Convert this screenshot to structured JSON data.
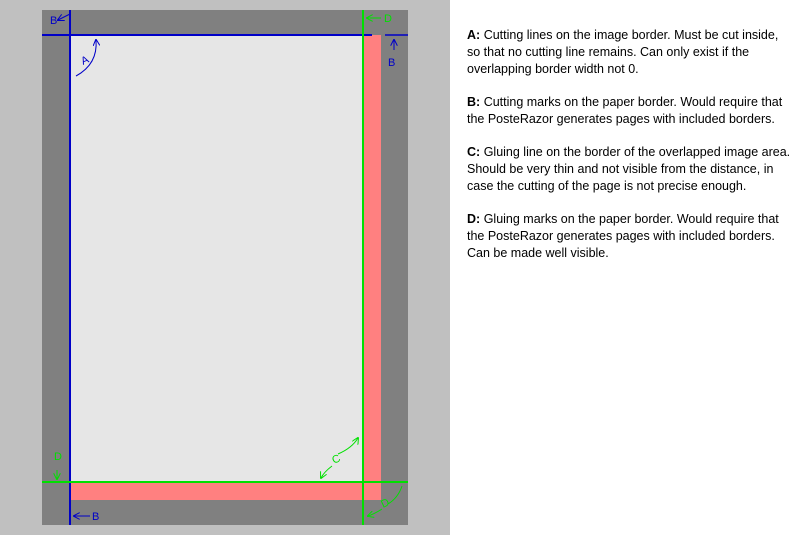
{
  "colors": {
    "panel_bg": "#c0c0c0",
    "paper_border": "#808080",
    "image_area": "#e6e6e6",
    "overlap_area": "#ff8080",
    "cutting_line": "#0000c8",
    "gluing_line": "#00e000"
  },
  "diagram": {
    "labels": {
      "a": "A",
      "b": "B",
      "c": "C",
      "d": "D"
    }
  },
  "legend": {
    "entries": [
      {
        "key": "A:",
        "text": "Cutting lines on the image border. Must be cut inside, so that no cutting line remains. Can only exist if the overlapping border width not 0."
      },
      {
        "key": "B:",
        "text": "Cutting marks on the paper border. Would require that the PosteRazor generates pages with included borders."
      },
      {
        "key": "C:",
        "text": "Gluing line on the border of the overlapped image area. Should be very thin and not visible from the distance, in case the cutting of the page is not precise enough."
      },
      {
        "key": "D:",
        "text": "Gluing marks on the paper border. Would require that the PosteRazor generates pages with included borders. Can be made well visible."
      }
    ]
  }
}
